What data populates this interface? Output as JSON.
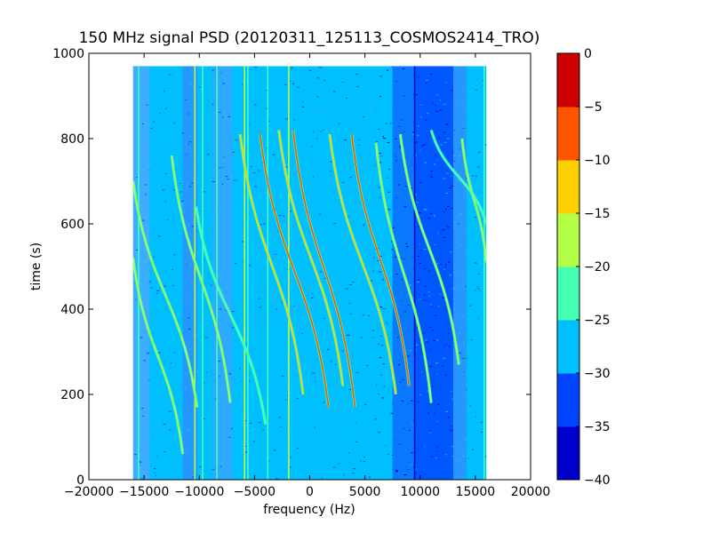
{
  "chart_data": {
    "type": "heatmap",
    "title": "150 MHz signal PSD (20120311_125113_COSMOS2414_TRO)",
    "xlabel": "frequency (Hz)",
    "ylabel": "time (s)",
    "xlim": [
      -20000,
      20000
    ],
    "ylim": [
      0,
      1000
    ],
    "x_ticks": [
      -20000,
      -15000,
      -10000,
      -5000,
      0,
      5000,
      10000,
      15000,
      20000
    ],
    "x_tick_labels": [
      "−20000",
      "−15000",
      "−10000",
      "−5000",
      "0",
      "5000",
      "10000",
      "15000",
      "20000"
    ],
    "y_ticks": [
      0,
      200,
      400,
      600,
      800,
      1000
    ],
    "y_tick_labels": [
      "0",
      "200",
      "400",
      "600",
      "800",
      "1000"
    ],
    "data_extent": {
      "x": [
        -16000,
        16000
      ],
      "y": [
        0,
        970
      ]
    },
    "colorbar": {
      "levels": [
        -40,
        -35,
        -30,
        -25,
        -20,
        -15,
        -10,
        -5,
        0
      ],
      "tick_labels": [
        "−40",
        "−35",
        "−30",
        "−25",
        "−20",
        "−15",
        "−10",
        "−5",
        "0"
      ],
      "colors": [
        "#0000cd",
        "#0044ff",
        "#00bfff",
        "#45ffb2",
        "#b2ff45",
        "#ffd000",
        "#ff5500",
        "#cd0000"
      ]
    },
    "background_level": "#00bfff",
    "noise_bands": [
      {
        "x": [
          -16000,
          -14500
        ],
        "color": "#45aaff"
      },
      {
        "x": [
          -11500,
          -10200
        ],
        "color": "#2b8fff"
      },
      {
        "x": [
          -8800,
          -7000
        ],
        "color": "#35a5ff"
      },
      {
        "x": [
          7500,
          9500
        ],
        "color": "#0a6cff"
      },
      {
        "x": [
          9500,
          13000
        ],
        "color": "#0044ff"
      },
      {
        "x": [
          13000,
          14200
        ],
        "color": "#2b8fff"
      }
    ],
    "vertical_lines": [
      {
        "x": -15500,
        "color": "#45ffb2"
      },
      {
        "x": -10400,
        "color": "#b2ff45"
      },
      {
        "x": -9700,
        "color": "#45ffb2"
      },
      {
        "x": -8400,
        "color": "#45ffb2"
      },
      {
        "x": -5900,
        "color": "#b2ff45"
      },
      {
        "x": -5600,
        "color": "#45ffb2"
      },
      {
        "x": -3800,
        "color": "#45ffb2"
      },
      {
        "x": -1900,
        "color": "#b2ff45"
      },
      {
        "x": 9500,
        "color": "#0000cd"
      },
      {
        "x": 15800,
        "color": "#45ffb2"
      }
    ],
    "traces": [
      {
        "start": [
          -16000,
          700
        ],
        "end": [
          -10200,
          170
        ],
        "color": "#b2ff45"
      },
      {
        "start": [
          -16000,
          520
        ],
        "end": [
          -11500,
          60
        ],
        "color": "#b2ff45"
      },
      {
        "start": [
          -12500,
          760
        ],
        "end": [
          -7200,
          180
        ],
        "color": "#b2ff45"
      },
      {
        "start": [
          -10300,
          640
        ],
        "end": [
          -4000,
          130
        ],
        "color": "#45ffb2"
      },
      {
        "start": [
          -6300,
          810
        ],
        "end": [
          -600,
          200
        ],
        "color": "#ffd000"
      },
      {
        "start": [
          -4500,
          810
        ],
        "end": [
          1700,
          170
        ],
        "color": "#ff5500"
      },
      {
        "start": [
          -2800,
          820
        ],
        "end": [
          3000,
          220
        ],
        "color": "#ffd000"
      },
      {
        "start": [
          -1500,
          820
        ],
        "end": [
          4100,
          170
        ],
        "color": "#ff5500"
      },
      {
        "start": [
          1800,
          810
        ],
        "end": [
          7800,
          200
        ],
        "color": "#ffd000"
      },
      {
        "start": [
          3800,
          810
        ],
        "end": [
          9000,
          220
        ],
        "color": "#ff5500"
      },
      {
        "start": [
          6000,
          790
        ],
        "end": [
          11000,
          180
        ],
        "color": "#b2ff45"
      },
      {
        "start": [
          8200,
          810
        ],
        "end": [
          13500,
          270
        ],
        "color": "#b2ff45"
      },
      {
        "start": [
          11000,
          820
        ],
        "end": [
          16000,
          600
        ],
        "color": "#45ffb2"
      },
      {
        "start": [
          13800,
          800
        ],
        "end": [
          16000,
          510
        ],
        "color": "#b2ff45"
      }
    ]
  }
}
